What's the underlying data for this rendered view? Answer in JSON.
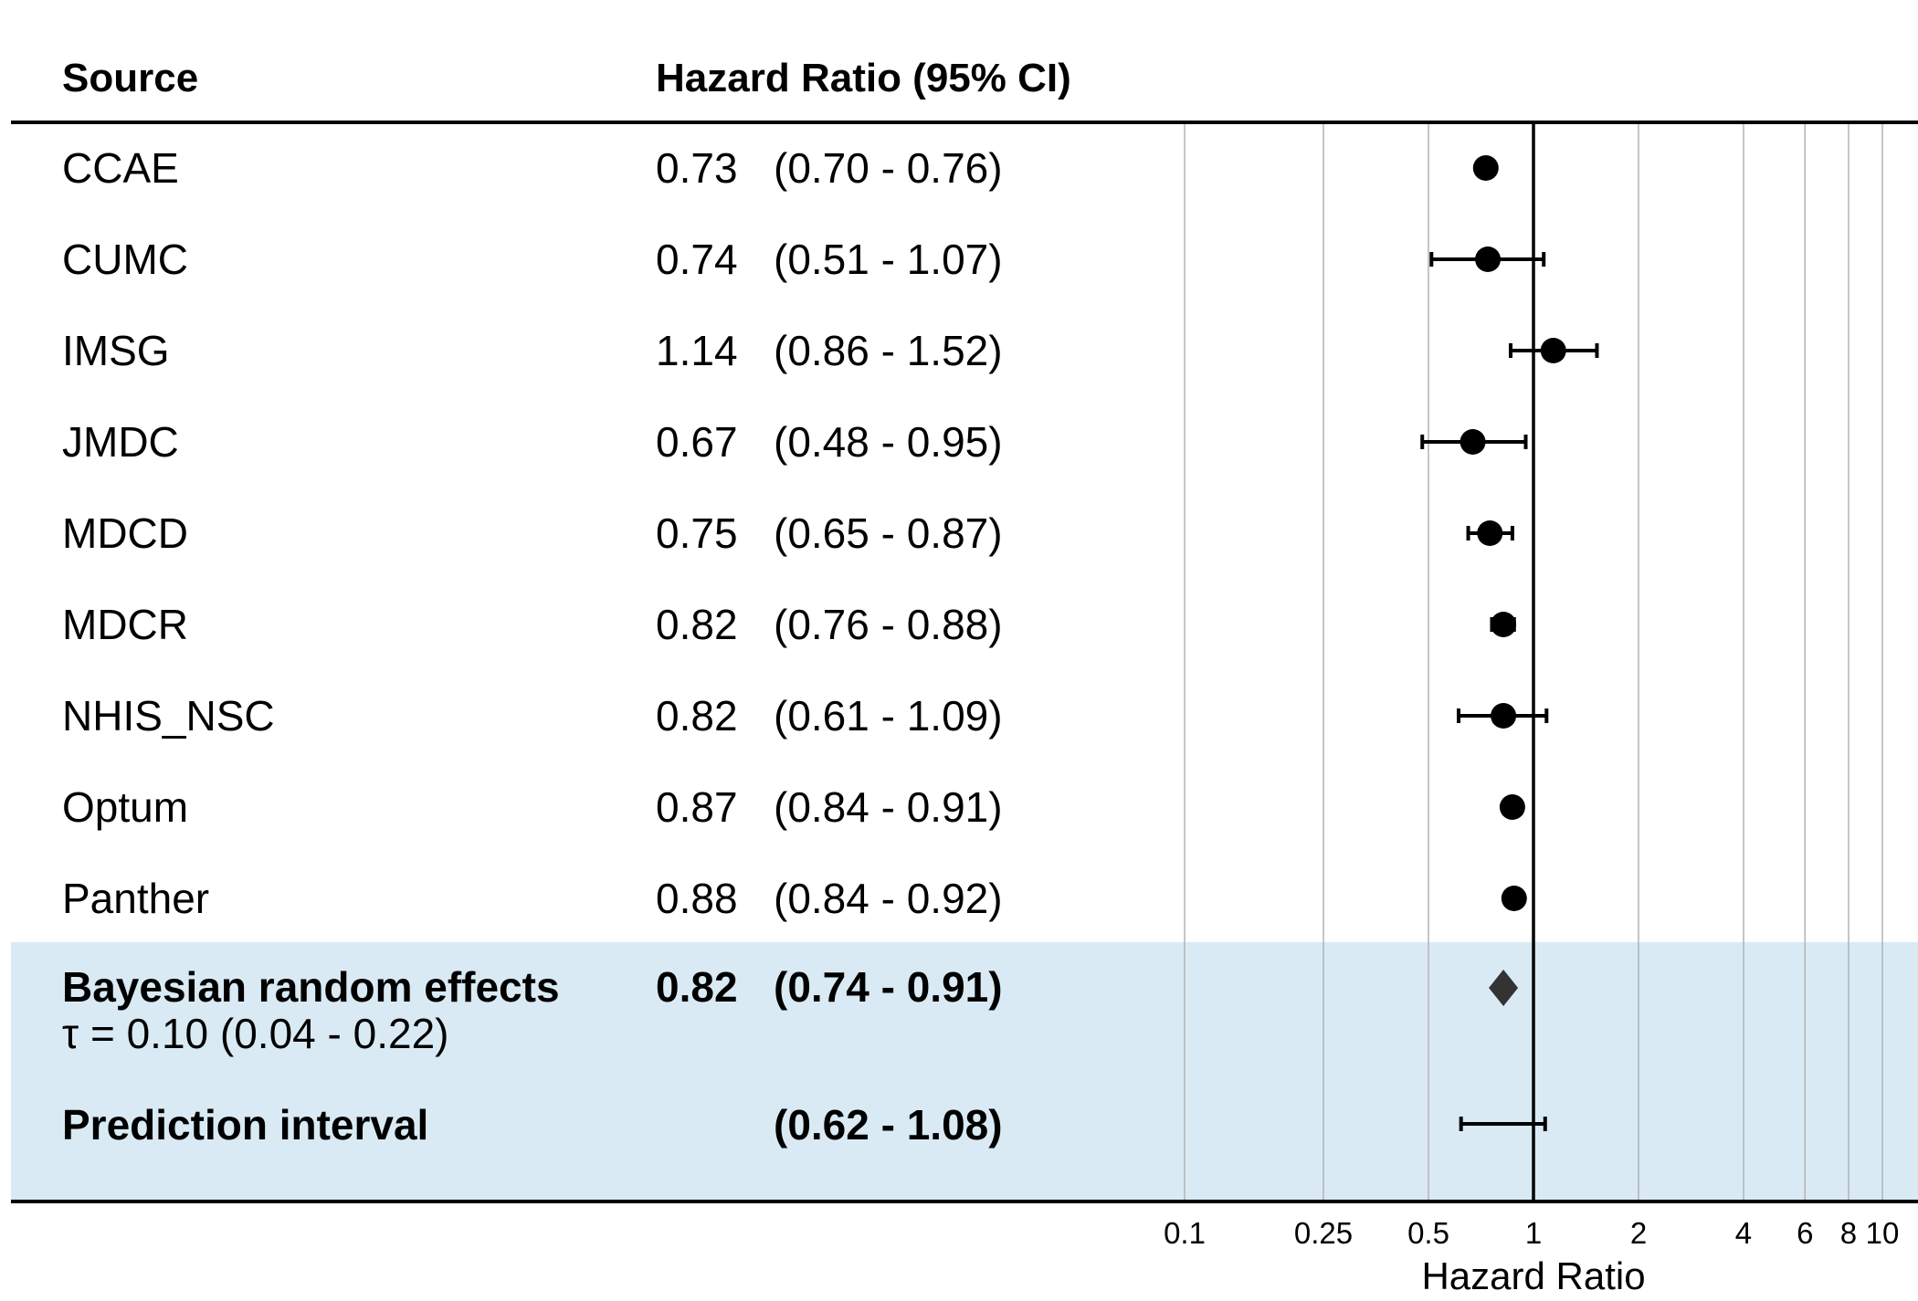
{
  "chart_data": {
    "type": "forest",
    "columns": {
      "source": "Source",
      "estimate": "Hazard Ratio (95% CI)"
    },
    "xlabel": "Hazard Ratio",
    "x_scale": "log",
    "xlim": [
      0.1,
      10
    ],
    "x_ticks": [
      {
        "value": 0.1,
        "label": "0.1"
      },
      {
        "value": 0.25,
        "label": "0.25"
      },
      {
        "value": 0.5,
        "label": "0.5"
      },
      {
        "value": 1,
        "label": "1"
      },
      {
        "value": 2,
        "label": "2"
      },
      {
        "value": 4,
        "label": "4"
      },
      {
        "value": 6,
        "label": "6"
      },
      {
        "value": 8,
        "label": "8"
      },
      {
        "value": 10,
        "label": "10"
      }
    ],
    "reference_line": 1,
    "grid": true,
    "rows": [
      {
        "source": "CCAE",
        "hr": 0.73,
        "lower": 0.7,
        "upper": 0.76,
        "hr_text": "0.73",
        "ci_text": "(0.70 - 0.76)"
      },
      {
        "source": "CUMC",
        "hr": 0.74,
        "lower": 0.51,
        "upper": 1.07,
        "hr_text": "0.74",
        "ci_text": "(0.51 - 1.07)"
      },
      {
        "source": "IMSG",
        "hr": 1.14,
        "lower": 0.86,
        "upper": 1.52,
        "hr_text": "1.14",
        "ci_text": "(0.86 - 1.52)"
      },
      {
        "source": "JMDC",
        "hr": 0.67,
        "lower": 0.48,
        "upper": 0.95,
        "hr_text": "0.67",
        "ci_text": "(0.48 - 0.95)"
      },
      {
        "source": "MDCD",
        "hr": 0.75,
        "lower": 0.65,
        "upper": 0.87,
        "hr_text": "0.75",
        "ci_text": "(0.65 - 0.87)"
      },
      {
        "source": "MDCR",
        "hr": 0.82,
        "lower": 0.76,
        "upper": 0.88,
        "hr_text": "0.82",
        "ci_text": "(0.76 - 0.88)"
      },
      {
        "source": "NHIS_NSC",
        "hr": 0.82,
        "lower": 0.61,
        "upper": 1.09,
        "hr_text": "0.82",
        "ci_text": "(0.61 - 1.09)"
      },
      {
        "source": "Optum",
        "hr": 0.87,
        "lower": 0.84,
        "upper": 0.91,
        "hr_text": "0.87",
        "ci_text": "(0.84 - 0.91)"
      },
      {
        "source": "Panther",
        "hr": 0.88,
        "lower": 0.84,
        "upper": 0.92,
        "hr_text": "0.88",
        "ci_text": "(0.84 - 0.92)"
      }
    ],
    "summary": {
      "source": "Bayesian random effects",
      "tau_text": "τ = 0.10 (0.04 - 0.22)",
      "hr": 0.82,
      "lower": 0.74,
      "upper": 0.91,
      "hr_text": "0.82",
      "ci_text": "(0.74 - 0.91)"
    },
    "prediction_interval": {
      "source": "Prediction interval",
      "lower": 0.62,
      "upper": 1.08,
      "ci_text": "(0.62 - 1.08)"
    },
    "colors": {
      "marker": "#000000",
      "summary_marker": "#333333",
      "summary_band": "#d9eaf4",
      "grid": "#b3b3b3"
    }
  }
}
